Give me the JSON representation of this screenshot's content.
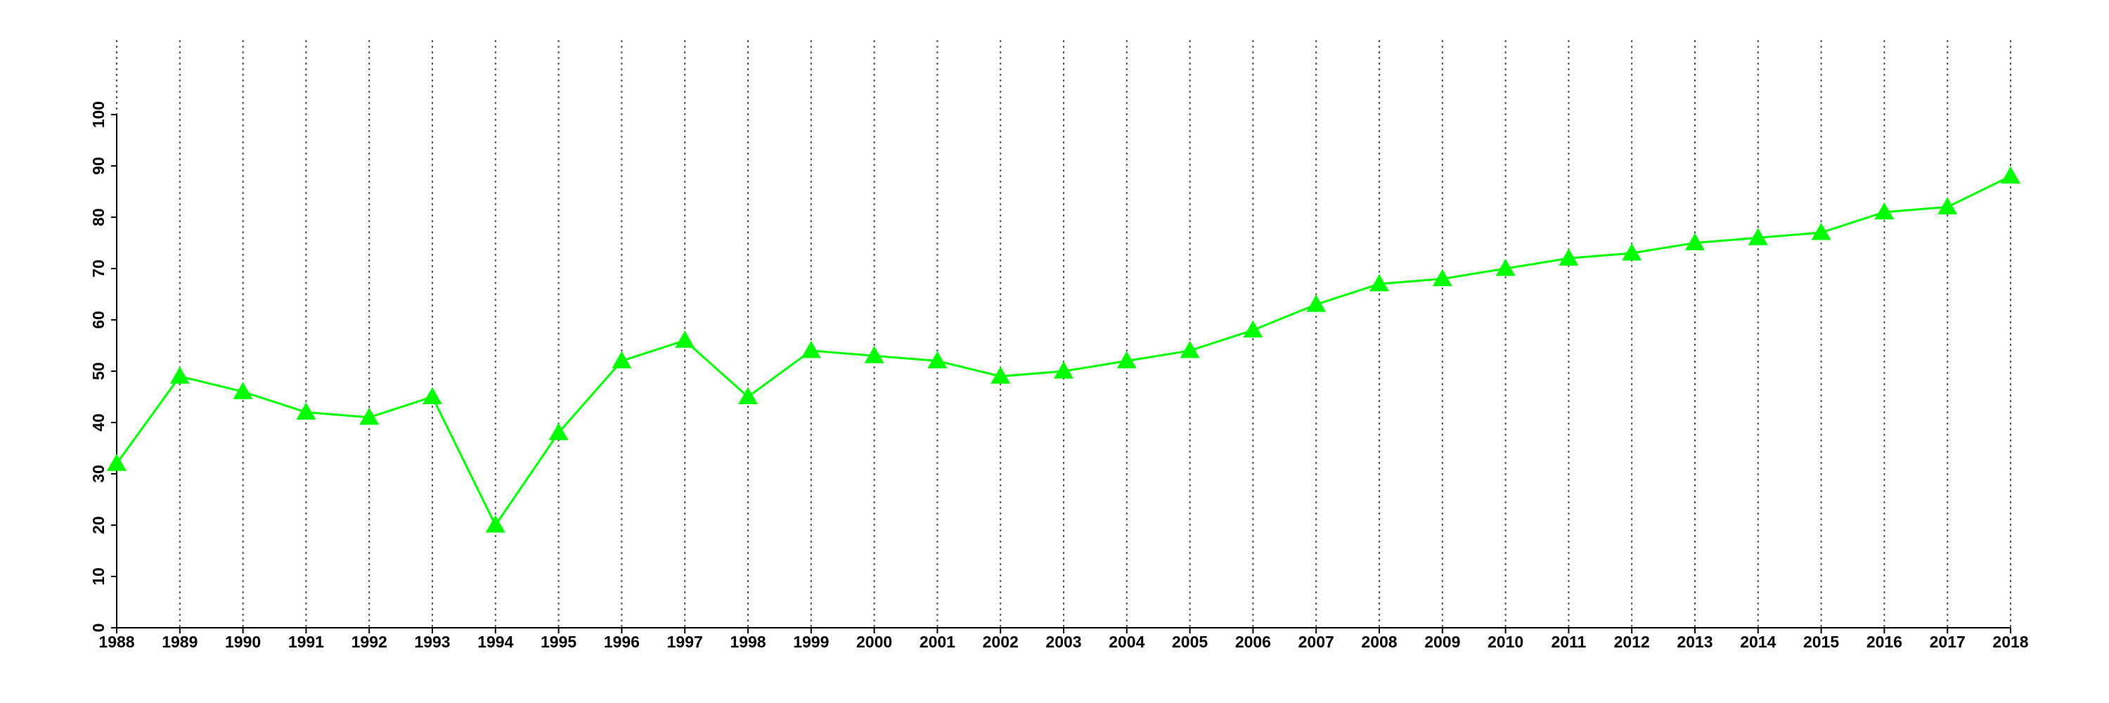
{
  "chart_data": {
    "type": "line",
    "x": [
      1988,
      1989,
      1990,
      1991,
      1992,
      1993,
      1994,
      1995,
      1996,
      1997,
      1998,
      1999,
      2000,
      2001,
      2002,
      2003,
      2004,
      2005,
      2006,
      2007,
      2008,
      2009,
      2010,
      2011,
      2012,
      2013,
      2014,
      2015,
      2016,
      2017,
      2018
    ],
    "series": [
      {
        "color": "#00ff00",
        "marker": "triangle",
        "values": [
          32,
          49,
          46,
          42,
          41,
          45,
          20,
          38,
          52,
          56,
          45,
          54,
          53,
          52,
          49,
          50,
          52,
          54,
          58,
          63,
          67,
          68,
          70,
          72,
          73,
          75,
          76,
          77,
          81,
          82,
          88
        ]
      }
    ],
    "xlim": [
      1988,
      2018
    ],
    "xticks": [
      1988,
      1989,
      1990,
      1991,
      1992,
      1993,
      1994,
      1995,
      1996,
      1997,
      1998,
      1999,
      2000,
      2001,
      2002,
      2003,
      2004,
      2005,
      2006,
      2007,
      2008,
      2009,
      2010,
      2011,
      2012,
      2013,
      2014,
      2015,
      2016,
      2017,
      2018
    ],
    "ylim": [
      0,
      100
    ],
    "yticks": [
      0,
      10,
      20,
      30,
      40,
      50,
      60,
      70,
      80,
      90,
      100
    ],
    "grid": "x"
  }
}
